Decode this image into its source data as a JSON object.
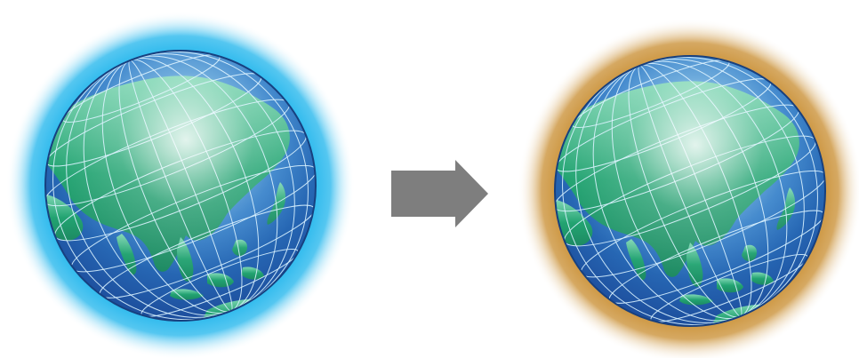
{
  "diagram": {
    "left_globe": {
      "glow_color": "#1cb4ec",
      "glow_edge_color": "#ffffff"
    },
    "arrow": {
      "icon": "right-arrow-icon",
      "color": "#7e7e7e"
    },
    "right_globe": {
      "glow_color": "#c88c2e",
      "glow_edge_color": "#ffffff"
    },
    "globe_colors": {
      "ocean_light": "#8fd3ee",
      "ocean_mid": "#2f7dc8",
      "ocean_dark": "#173f8f",
      "land": "#22a371",
      "grid": "#d8f2ff"
    }
  }
}
